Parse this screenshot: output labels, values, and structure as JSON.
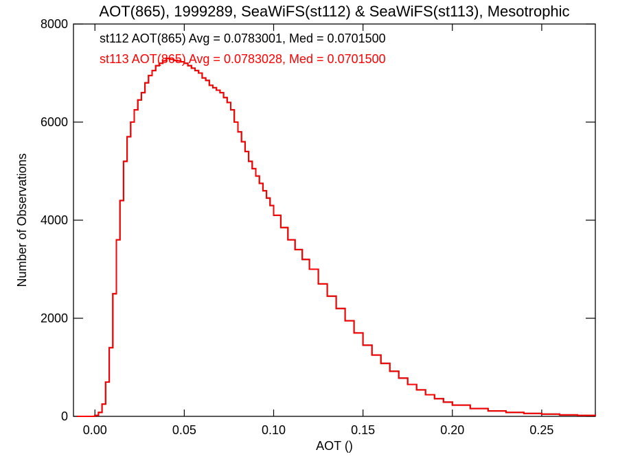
{
  "chart_data": {
    "type": "line",
    "step": true,
    "title": "AOT(865), 1999289, SeaWiFS(st112) & SeaWiFS(st113), Mesotrophic",
    "xlabel": "AOT ()",
    "ylabel": "Number of Observations",
    "xlim": [
      -0.012,
      0.28
    ],
    "ylim": [
      0,
      8000
    ],
    "xticks": [
      0.0,
      0.05,
      0.1,
      0.15,
      0.2,
      0.25
    ],
    "xtick_labels": [
      "0.00",
      "0.05",
      "0.10",
      "0.15",
      "0.20",
      "0.25"
    ],
    "yticks": [
      0,
      2000,
      4000,
      6000,
      8000
    ],
    "ytick_labels": [
      "0",
      "2000",
      "4000",
      "6000",
      "8000"
    ],
    "grid": false,
    "annotations": [
      {
        "text": "st112 AOT(865) Avg = 0.0783001, Med = 0.0701500",
        "color": "#000000"
      },
      {
        "text": "st113 AOT(865) Avg = 0.0783028, Med = 0.0701500",
        "color": "#ff0000"
      }
    ],
    "x": [
      -0.01,
      0.0,
      0.002,
      0.004,
      0.006,
      0.008,
      0.01,
      0.012,
      0.014,
      0.016,
      0.018,
      0.02,
      0.022,
      0.024,
      0.026,
      0.028,
      0.03,
      0.032,
      0.034,
      0.036,
      0.038,
      0.04,
      0.042,
      0.044,
      0.046,
      0.048,
      0.05,
      0.052,
      0.054,
      0.056,
      0.058,
      0.06,
      0.062,
      0.064,
      0.066,
      0.068,
      0.07,
      0.072,
      0.074,
      0.076,
      0.078,
      0.08,
      0.082,
      0.084,
      0.086,
      0.088,
      0.09,
      0.092,
      0.094,
      0.096,
      0.098,
      0.1,
      0.104,
      0.108,
      0.112,
      0.116,
      0.12,
      0.125,
      0.13,
      0.135,
      0.14,
      0.145,
      0.15,
      0.155,
      0.16,
      0.165,
      0.17,
      0.175,
      0.18,
      0.185,
      0.19,
      0.195,
      0.2,
      0.21,
      0.22,
      0.23,
      0.24,
      0.25,
      0.26,
      0.27,
      0.28
    ],
    "series": [
      {
        "name": "st112",
        "color": "#000000",
        "values": [
          0,
          20,
          80,
          250,
          700,
          1400,
          2500,
          3600,
          4400,
          5200,
          5700,
          6000,
          6250,
          6450,
          6600,
          6800,
          6950,
          7050,
          7150,
          7200,
          7250,
          7300,
          7280,
          7260,
          7250,
          7230,
          7200,
          7150,
          7100,
          7050,
          7000,
          6900,
          6850,
          6750,
          6700,
          6650,
          6600,
          6500,
          6400,
          6250,
          6000,
          5800,
          5600,
          5400,
          5200,
          5050,
          4900,
          4750,
          4600,
          4450,
          4300,
          4100,
          3850,
          3600,
          3400,
          3200,
          3000,
          2700,
          2450,
          2200,
          1950,
          1700,
          1450,
          1250,
          1080,
          920,
          780,
          650,
          540,
          440,
          360,
          290,
          230,
          160,
          110,
          80,
          60,
          45,
          30,
          20,
          10
        ]
      },
      {
        "name": "st113",
        "color": "#ff0000",
        "values": [
          0,
          20,
          80,
          250,
          700,
          1400,
          2500,
          3600,
          4400,
          5200,
          5700,
          6000,
          6250,
          6450,
          6600,
          6800,
          6950,
          7050,
          7150,
          7200,
          7250,
          7300,
          7280,
          7260,
          7250,
          7230,
          7200,
          7150,
          7100,
          7050,
          7000,
          6900,
          6850,
          6750,
          6700,
          6650,
          6600,
          6500,
          6400,
          6250,
          6000,
          5800,
          5600,
          5400,
          5200,
          5050,
          4900,
          4750,
          4600,
          4450,
          4300,
          4100,
          3850,
          3600,
          3400,
          3200,
          3000,
          2700,
          2450,
          2200,
          1950,
          1700,
          1450,
          1250,
          1080,
          920,
          780,
          650,
          540,
          440,
          360,
          290,
          230,
          160,
          110,
          80,
          60,
          45,
          30,
          20,
          10
        ]
      }
    ]
  }
}
